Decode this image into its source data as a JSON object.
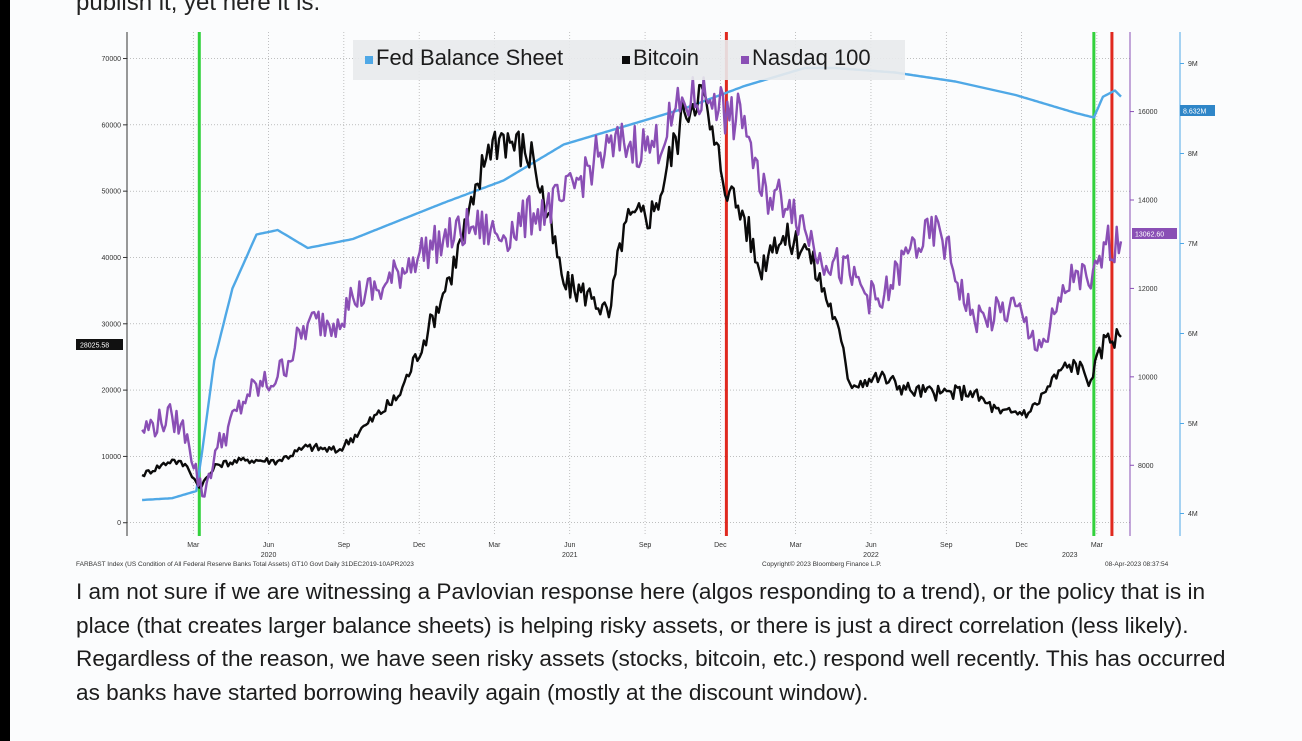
{
  "header_cut_text": "publish it, yet here it is.",
  "colors": {
    "fed": "#4fa8e6",
    "btc": "#0b0b0b",
    "ndx": "#8a4fb5",
    "green": "#32d13c",
    "red": "#e0291f",
    "grid": "#9a9a9a"
  },
  "paragraph": "I am not sure if we are witnessing a Pavlovian response here (algos responding to a trend), or the policy that is in place (that creates larger balance sheets) is helping risky assets, or there is just a direct correlation (less likely). Regardless of the reason, we have seen risky assets (stocks, bitcoin, etc.) respond well recently. This has occurred as banks have started borrowing heavily again (mostly at the discount window).",
  "chart_data": {
    "type": "line",
    "legend": [
      "Fed Balance Sheet",
      "Bitcoin",
      "Nasdaq 100"
    ],
    "legend_position": "top-center",
    "grid": true,
    "x_range": [
      2019.95,
      2023.28
    ],
    "x_ticks": [
      {
        "x": 2020.17,
        "label": "Mar"
      },
      {
        "x": 2020.42,
        "label": "Jun"
      },
      {
        "x": 2020.67,
        "label": "Sep"
      },
      {
        "x": 2020.92,
        "label": "Dec"
      },
      {
        "x": 2021.17,
        "label": "Mar"
      },
      {
        "x": 2021.42,
        "label": "Jun"
      },
      {
        "x": 2021.67,
        "label": "Sep"
      },
      {
        "x": 2021.92,
        "label": "Dec"
      },
      {
        "x": 2022.17,
        "label": "Mar"
      },
      {
        "x": 2022.42,
        "label": "Jun"
      },
      {
        "x": 2022.67,
        "label": "Sep"
      },
      {
        "x": 2022.92,
        "label": "Dec"
      },
      {
        "x": 2023.17,
        "label": "Mar"
      }
    ],
    "year_labels": [
      {
        "x": 2020.42,
        "label": "2020"
      },
      {
        "x": 2021.42,
        "label": "2021"
      },
      {
        "x": 2022.42,
        "label": "2022"
      },
      {
        "x": 2023.08,
        "label": "2023"
      }
    ],
    "left_axis": {
      "series": "Bitcoin",
      "ylim": [
        -2000,
        74000
      ],
      "ticks": [
        0,
        10000,
        20000,
        30000,
        40000,
        50000,
        60000,
        70000
      ],
      "tick_labels": [
        "0",
        "10000",
        "20000",
        "30000",
        "40000",
        "50000",
        "60000",
        "70000"
      ]
    },
    "right_axis_1": {
      "series": "Nasdaq 100",
      "ylim": [
        6400,
        17800
      ],
      "ticks": [
        8000,
        10000,
        12000,
        14000,
        16000
      ],
      "tick_labels": [
        "8000",
        "10000",
        "12000",
        "14000",
        "16000"
      ]
    },
    "right_axis_2": {
      "series": "Fed Balance Sheet",
      "unit": "M",
      "ylim": [
        3750000,
        9350000
      ],
      "ticks": [
        4000000,
        5000000,
        6000000,
        7000000,
        8000000,
        9000000
      ],
      "tick_labels": [
        "4M",
        "5M",
        "6M",
        "7M",
        "8M",
        "9M"
      ]
    },
    "last_value_tags": {
      "bitcoin": "28025.58",
      "nasdaq": "13062.60",
      "fed": "8.632M"
    },
    "vertical_lines": [
      {
        "x": 2020.19,
        "color": "green"
      },
      {
        "x": 2021.94,
        "color": "red"
      },
      {
        "x": 2023.16,
        "color": "green"
      },
      {
        "x": 2023.22,
        "color": "red"
      }
    ],
    "series": [
      {
        "name": "Fed Balance Sheet",
        "axis": "right_axis_2",
        "x": [
          2020.0,
          2020.1,
          2020.18,
          2020.2,
          2020.24,
          2020.3,
          2020.38,
          2020.45,
          2020.55,
          2020.7,
          2020.85,
          2021.0,
          2021.2,
          2021.4,
          2021.6,
          2021.8,
          2022.0,
          2022.2,
          2022.3,
          2022.5,
          2022.7,
          2022.9,
          2023.0,
          2023.1,
          2023.16,
          2023.19,
          2023.23,
          2023.25
        ],
        "y": [
          4150000,
          4170000,
          4250000,
          4700000,
          5700000,
          6500000,
          7100000,
          7150000,
          6950000,
          7050000,
          7250000,
          7450000,
          7700000,
          8100000,
          8300000,
          8500000,
          8750000,
          8950000,
          8950000,
          8900000,
          8800000,
          8650000,
          8550000,
          8450000,
          8400000,
          8630000,
          8700000,
          8632000
        ]
      },
      {
        "name": "Bitcoin",
        "axis": "left_axis",
        "x": [
          2020.0,
          2020.1,
          2020.15,
          2020.19,
          2020.25,
          2020.35,
          2020.45,
          2020.55,
          2020.65,
          2020.75,
          2020.85,
          2020.95,
          2021.02,
          2021.1,
          2021.15,
          2021.2,
          2021.3,
          2021.4,
          2021.5,
          2021.55,
          2021.6,
          2021.7,
          2021.8,
          2021.85,
          2021.9,
          2021.95,
          2022.0,
          2022.05,
          2022.1,
          2022.2,
          2022.3,
          2022.35,
          2022.4,
          2022.45,
          2022.55,
          2022.65,
          2022.75,
          2022.85,
          2022.95,
          2023.05,
          2023.1,
          2023.15,
          2023.2,
          2023.25
        ],
        "y": [
          7200,
          9500,
          8500,
          5300,
          8800,
          9500,
          9300,
          11500,
          10800,
          15000,
          19000,
          29000,
          37000,
          48000,
          57000,
          58500,
          55000,
          36000,
          34000,
          31000,
          45000,
          47000,
          62000,
          66000,
          57000,
          50000,
          46000,
          38000,
          43000,
          42000,
          31000,
          21000,
          21500,
          22000,
          20000,
          19500,
          19800,
          16500,
          16800,
          23000,
          24000,
          21500,
          28000,
          28025.58
        ]
      },
      {
        "name": "Nasdaq 100",
        "axis": "right_axis_1",
        "x": [
          2020.0,
          2020.1,
          2020.15,
          2020.2,
          2020.25,
          2020.35,
          2020.45,
          2020.55,
          2020.65,
          2020.7,
          2020.8,
          2020.9,
          2021.0,
          2021.1,
          2021.2,
          2021.3,
          2021.4,
          2021.5,
          2021.6,
          2021.7,
          2021.8,
          2021.9,
          2021.95,
          2022.0,
          2022.05,
          2022.15,
          2022.25,
          2022.35,
          2022.45,
          2022.55,
          2022.65,
          2022.75,
          2022.8,
          2022.9,
          2022.95,
          2023.0,
          2023.05,
          2023.1,
          2023.15,
          2023.2,
          2023.25
        ],
        "y": [
          8800,
          9100,
          8700,
          7300,
          8400,
          9600,
          10000,
          11200,
          11300,
          11800,
          12000,
          12700,
          13100,
          13400,
          13200,
          13700,
          14000,
          14900,
          15300,
          15200,
          16200,
          16400,
          15800,
          15900,
          14200,
          14000,
          12800,
          12300,
          11600,
          12900,
          13300,
          11400,
          11300,
          11600,
          10900,
          10800,
          11700,
          12400,
          12000,
          13000,
          13062.6
        ]
      }
    ]
  },
  "footer": {
    "source": "FARBAST Index (US Condition of All Federal Reserve Banks Total Assets) GT10  Govt  Daily 31DEC2019-10APR2023",
    "copyright": "Copyright© 2023 Bloomberg Finance L.P.",
    "timestamp": "08-Apr-2023 08:37:54"
  }
}
